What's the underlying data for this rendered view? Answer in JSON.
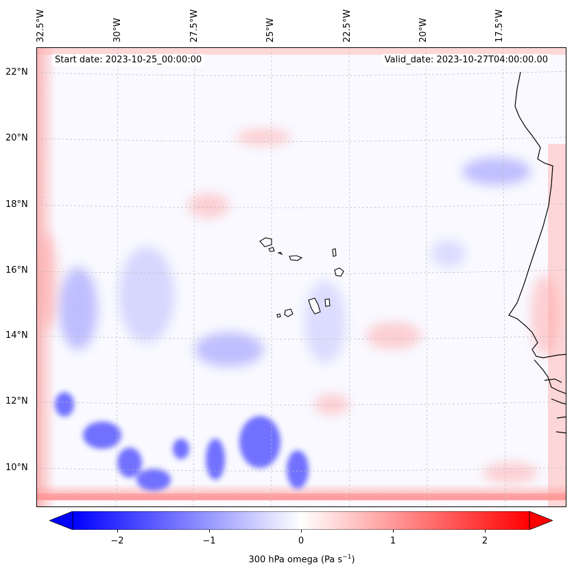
{
  "map": {
    "start_date": "Start date: 2023-10-25_00:00:00",
    "valid_date": "Valid_date: 2023-10-27T04:00:00.00",
    "lon_labels": [
      "32.5°W",
      "30°W",
      "27.5°W",
      "25°W",
      "22.5°W",
      "20°W",
      "17.5°W"
    ],
    "lat_labels": [
      "22°N",
      "20°N",
      "18°N",
      "16°N",
      "14°N",
      "12°N",
      "10°N"
    ],
    "field": "300 hPa omega",
    "units": "Pa s",
    "units_exponent": "−1"
  },
  "colorbar": {
    "ticks": [
      "−2",
      "−1",
      "0",
      "1",
      "2"
    ],
    "tick_values": [
      -2,
      -1,
      0,
      1,
      2
    ],
    "range": [
      -2.6,
      2.6
    ],
    "extend": "both",
    "colormap": "bwr",
    "label": "300 hPa omega (Pa s",
    "label_superscript": "−1",
    "label_close": ")"
  },
  "colors": {
    "negative": "#0000ff",
    "neutral": "#ffffff",
    "positive": "#ff0000",
    "coast": "#000000"
  }
}
